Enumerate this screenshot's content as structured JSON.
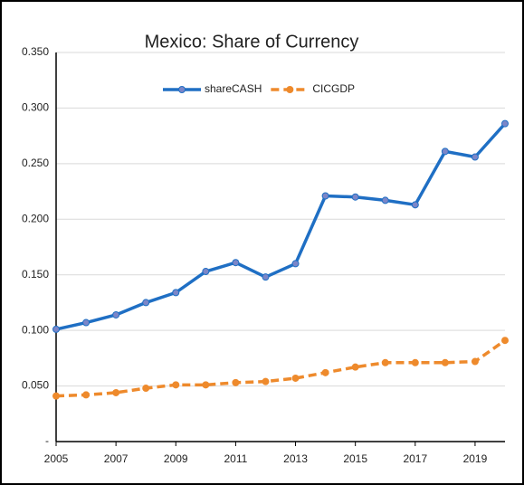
{
  "chart_data": {
    "type": "line",
    "title": "Mexico: Share of Currency",
    "x": [
      2005,
      2006,
      2007,
      2008,
      2009,
      2010,
      2011,
      2012,
      2013,
      2014,
      2015,
      2016,
      2017,
      2018,
      2019,
      2020
    ],
    "xlim": [
      2005,
      2020
    ],
    "xticks": [
      2005,
      2007,
      2009,
      2011,
      2013,
      2015,
      2017,
      2019
    ],
    "ylim": [
      0,
      0.35
    ],
    "yticks": [
      {
        "value": 0,
        "label": "-"
      },
      {
        "value": 0.05,
        "label": "0.050"
      },
      {
        "value": 0.1,
        "label": "0.100"
      },
      {
        "value": 0.15,
        "label": "0.150"
      },
      {
        "value": 0.2,
        "label": "0.200"
      },
      {
        "value": 0.25,
        "label": "0.250"
      },
      {
        "value": 0.3,
        "label": "0.300"
      },
      {
        "value": 0.35,
        "label": "0.350"
      }
    ],
    "grid": true,
    "legend": "top",
    "series": [
      {
        "name": "shareCASH",
        "color": "#1f6fc4",
        "marker_color": "#7b86c8",
        "line_style": "solid",
        "values": [
          0.101,
          0.107,
          0.114,
          0.125,
          0.134,
          0.153,
          0.161,
          0.148,
          0.16,
          0.221,
          0.22,
          0.217,
          0.213,
          0.261,
          0.256,
          0.286
        ]
      },
      {
        "name": "CICGDP",
        "color": "#ee8a2c",
        "marker_color": "#ee8a2c",
        "line_style": "dashed",
        "values": [
          0.041,
          0.042,
          0.044,
          0.048,
          0.051,
          0.051,
          0.053,
          0.054,
          0.057,
          0.062,
          0.067,
          0.071,
          0.071,
          0.071,
          0.072,
          0.091
        ]
      }
    ]
  }
}
